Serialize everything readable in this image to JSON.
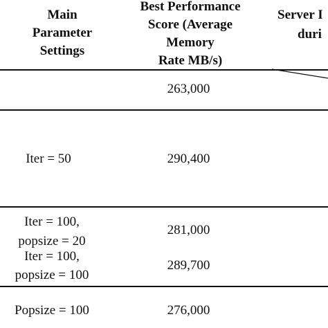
{
  "table": {
    "headers": {
      "col1": [
        "Main",
        "Parameter",
        "Settings"
      ],
      "col2": [
        "Best Performance",
        "Score (Average",
        "Memory",
        "Rate MB/s)"
      ],
      "col3": [
        "Server I",
        "duri"
      ]
    },
    "rows": [
      {
        "setting": [],
        "score": "263,000"
      },
      {
        "setting": [
          "Iter = 50"
        ],
        "score": "290,400"
      },
      {
        "setting": [
          "Iter = 100,",
          "popsize = 20"
        ],
        "score": "281,000"
      },
      {
        "setting": [
          "Iter = 100,",
          "popsize = 100"
        ],
        "score": "289,700"
      },
      {
        "setting": [
          "Popsize = 100"
        ],
        "score": "276,000"
      }
    ]
  }
}
